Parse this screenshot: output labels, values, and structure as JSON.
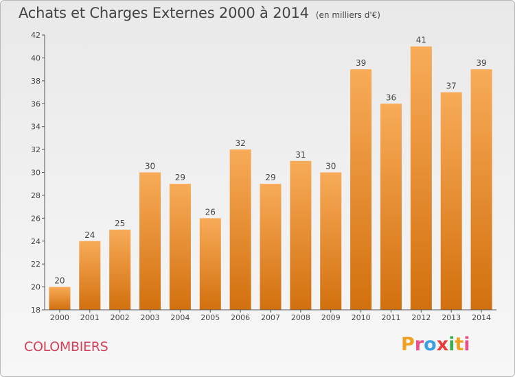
{
  "chart_data": {
    "type": "bar",
    "title": "Achats et Charges Externes 2000 à 2014",
    "subtitle": "(en milliers d'€)",
    "categories": [
      "2000",
      "2001",
      "2002",
      "2003",
      "2004",
      "2005",
      "2006",
      "2007",
      "2008",
      "2009",
      "2010",
      "2011",
      "2012",
      "2013",
      "2014"
    ],
    "values": [
      20,
      24,
      25,
      30,
      29,
      26,
      32,
      29,
      31,
      30,
      39,
      36,
      41,
      37,
      39
    ],
    "data_labels": [
      "20",
      "24",
      "25",
      "30",
      "29",
      "26",
      "32",
      "29",
      "31",
      "30",
      "39",
      "36",
      "41",
      "37",
      "39"
    ],
    "ylim": [
      18,
      42
    ],
    "yticks": [
      18,
      20,
      22,
      24,
      26,
      28,
      30,
      32,
      34,
      36,
      38,
      40,
      42
    ],
    "xlabel": "",
    "ylabel": "",
    "grid": false,
    "colors": {
      "bar_top": "#f8ab58",
      "bar_bottom": "#d2700e",
      "axis": "#555555",
      "text": "#444444"
    }
  },
  "footer": {
    "commune": "COLOMBIERS",
    "brand": "Proxiti",
    "brand_colors": [
      "#f0a020",
      "#e8508a",
      "#3aa0e0",
      "#e83c3c",
      "#3cb050",
      "#f0a020",
      "#e8508a"
    ]
  }
}
